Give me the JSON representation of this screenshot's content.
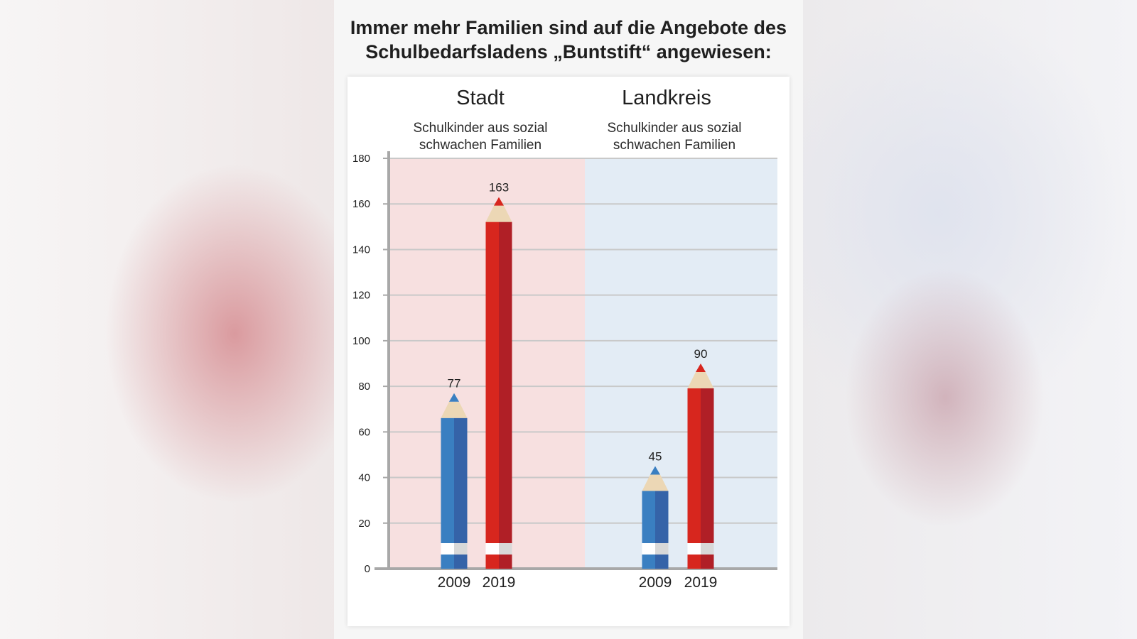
{
  "title_line1": "Immer mehr Familien sind auf die Angebote des",
  "title_line2": "Schulbedarfsladens „Buntstift“ angewiesen:",
  "colors": {
    "blue": "#3a7fc1",
    "blue_dark": "#3563a8",
    "red": "#d7261e",
    "red_dark": "#b01f26",
    "stadt_bg": "#f7e0e0",
    "landkreis_bg": "#e3ecf5",
    "wood": "#ecd7b5"
  },
  "chart_data": {
    "type": "bar",
    "ylim": [
      0,
      180
    ],
    "yticks": [
      0,
      20,
      40,
      60,
      80,
      100,
      120,
      140,
      160,
      180
    ],
    "grid": true,
    "groups": [
      {
        "title": "Stadt",
        "subtitle_line1": "Schulkinder aus sozial",
        "subtitle_line2": "schwachen Familien",
        "categories": [
          "2009",
          "2019"
        ],
        "values": [
          77,
          163
        ]
      },
      {
        "title": "Landkreis",
        "subtitle_line1": "Schulkinder aus sozial",
        "subtitle_line2": "schwachen Familien",
        "categories": [
          "2009",
          "2019"
        ],
        "values": [
          45,
          90
        ]
      }
    ]
  }
}
